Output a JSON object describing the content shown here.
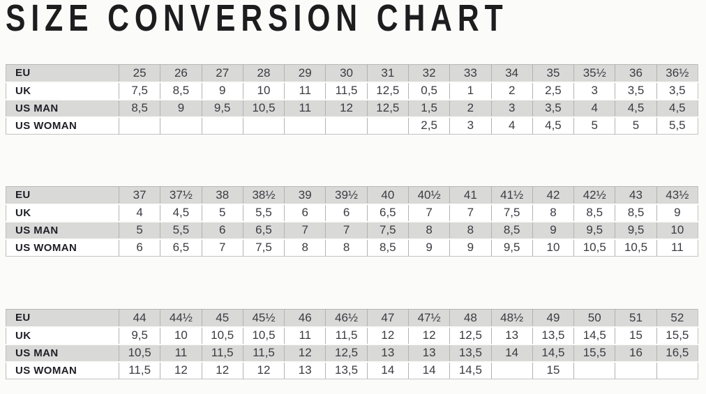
{
  "page": {
    "title": "SIZE CONVERSION CHART"
  },
  "row_labels": [
    "EU",
    "UK",
    "US MAN",
    "US WOMAN"
  ],
  "colors": {
    "page_background": "#fbfbf9",
    "shaded_row": "#d9d9d8",
    "plain_row": "#ffffff",
    "grid_border": "#b2b2b2",
    "title_text": "#1d1d1f",
    "label_text": "#1e1e26",
    "value_text": "#3b3b42"
  },
  "chart_data": [
    {
      "type": "table",
      "title": "Size conversion — EU 25 to 36½",
      "rows": [
        {
          "label": "EU",
          "values": [
            "25",
            "26",
            "27",
            "28",
            "29",
            "30",
            "31",
            "32",
            "33",
            "34",
            "35",
            "35½",
            "36",
            "36½"
          ]
        },
        {
          "label": "UK",
          "values": [
            "7,5",
            "8,5",
            "9",
            "10",
            "11",
            "11,5",
            "12,5",
            "0,5",
            "1",
            "2",
            "2,5",
            "3",
            "3,5",
            "3,5"
          ]
        },
        {
          "label": "US MAN",
          "values": [
            "8,5",
            "9",
            "9,5",
            "10,5",
            "11",
            "12",
            "12,5",
            "1,5",
            "2",
            "3",
            "3,5",
            "4",
            "4,5",
            "4,5"
          ]
        },
        {
          "label": "US WOMAN",
          "values": [
            "",
            "",
            "",
            "",
            "",
            "",
            "",
            "2,5",
            "3",
            "4",
            "4,5",
            "5",
            "5",
            "5,5"
          ]
        }
      ]
    },
    {
      "type": "table",
      "title": "Size conversion — EU 37 to 43½",
      "rows": [
        {
          "label": "EU",
          "values": [
            "37",
            "37½",
            "38",
            "38½",
            "39",
            "39½",
            "40",
            "40½",
            "41",
            "41½",
            "42",
            "42½",
            "43",
            "43½"
          ]
        },
        {
          "label": "UK",
          "values": [
            "4",
            "4,5",
            "5",
            "5,5",
            "6",
            "6",
            "6,5",
            "7",
            "7",
            "7,5",
            "8",
            "8,5",
            "8,5",
            "9"
          ]
        },
        {
          "label": "US MAN",
          "values": [
            "5",
            "5,5",
            "6",
            "6,5",
            "7",
            "7",
            "7,5",
            "8",
            "8",
            "8,5",
            "9",
            "9,5",
            "9,5",
            "10"
          ]
        },
        {
          "label": "US WOMAN",
          "values": [
            "6",
            "6,5",
            "7",
            "7,5",
            "8",
            "8",
            "8,5",
            "9",
            "9",
            "9,5",
            "10",
            "10,5",
            "10,5",
            "11"
          ]
        }
      ]
    },
    {
      "type": "table",
      "title": "Size conversion — EU 44 to 52",
      "rows": [
        {
          "label": "EU",
          "values": [
            "44",
            "44½",
            "45",
            "45½",
            "46",
            "46½",
            "47",
            "47½",
            "48",
            "48½",
            "49",
            "50",
            "51",
            "52"
          ]
        },
        {
          "label": "UK",
          "values": [
            "9,5",
            "10",
            "10,5",
            "10,5",
            "11",
            "11,5",
            "12",
            "12",
            "12,5",
            "13",
            "13,5",
            "14,5",
            "15",
            "15,5"
          ]
        },
        {
          "label": "US MAN",
          "values": [
            "10,5",
            "11",
            "11,5",
            "11,5",
            "12",
            "12,5",
            "13",
            "13",
            "13,5",
            "14",
            "14,5",
            "15,5",
            "16",
            "16,5"
          ]
        },
        {
          "label": "US WOMAN",
          "values": [
            "11,5",
            "12",
            "12",
            "12",
            "13",
            "13,5",
            "14",
            "14",
            "14,5",
            "",
            "15",
            "",
            "",
            ""
          ]
        }
      ]
    }
  ]
}
